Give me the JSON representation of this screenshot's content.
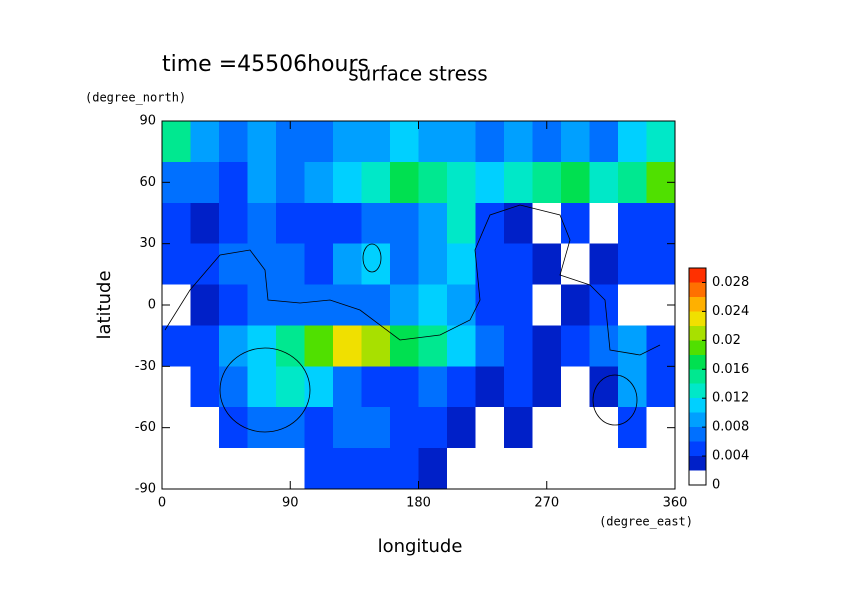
{
  "chart_data": {
    "type": "contour",
    "title": "surface stress",
    "annotation": "time =45506hours",
    "xlabel": "longitude",
    "xunit": "(degree_east)",
    "ylabel": "latitude",
    "yunit": "(degree_north)",
    "xlim": [
      0,
      360
    ],
    "xticks": [
      0,
      90,
      180,
      270,
      360
    ],
    "ylim": [
      -90,
      90
    ],
    "yticks": [
      -90,
      -60,
      -30,
      0,
      30,
      60,
      90
    ],
    "x": [
      10,
      30,
      50,
      70,
      90,
      110,
      130,
      150,
      170,
      190,
      210,
      230,
      250,
      270,
      290,
      310,
      330,
      350
    ],
    "y": [
      80,
      60,
      40,
      20,
      0,
      -20,
      -40,
      -60,
      -80
    ],
    "z": [
      [
        0.014,
        0.008,
        0.006,
        0.008,
        0.006,
        0.006,
        0.008,
        0.008,
        0.01,
        0.008,
        0.008,
        0.006,
        0.008,
        0.006,
        0.008,
        0.006,
        0.01,
        0.012
      ],
      [
        0.006,
        0.006,
        0.004,
        0.008,
        0.006,
        0.008,
        0.01,
        0.012,
        0.016,
        0.014,
        0.012,
        0.01,
        0.012,
        0.014,
        0.016,
        0.012,
        0.014,
        0.018
      ],
      [
        0.004,
        0.002,
        0.004,
        0.006,
        0.004,
        0.004,
        0.004,
        0.006,
        0.006,
        0.008,
        0.012,
        0.004,
        0.002,
        0.001,
        0.004,
        0.001,
        0.004,
        0.004
      ],
      [
        0.004,
        0.004,
        0.006,
        0.006,
        0.006,
        0.004,
        0.008,
        0.01,
        0.006,
        0.008,
        0.01,
        0.004,
        0.004,
        0.002,
        0.001,
        0.002,
        0.004,
        0.004
      ],
      [
        0.001,
        0.002,
        0.004,
        0.006,
        0.006,
        0.006,
        0.006,
        0.006,
        0.008,
        0.01,
        0.008,
        0.004,
        0.004,
        0.001,
        0.002,
        0.004,
        0.001,
        0.001
      ],
      [
        0.004,
        0.004,
        0.008,
        0.01,
        0.014,
        0.018,
        0.022,
        0.02,
        0.016,
        0.014,
        0.01,
        0.006,
        0.004,
        0.002,
        0.004,
        0.006,
        0.008,
        0.004
      ],
      [
        0.001,
        0.004,
        0.006,
        0.01,
        0.012,
        0.01,
        0.006,
        0.004,
        0.004,
        0.006,
        0.004,
        0.002,
        0.004,
        0.002,
        0.001,
        0.002,
        0.008,
        0.004
      ],
      [
        0.001,
        0.001,
        0.004,
        0.006,
        0.006,
        0.004,
        0.006,
        0.006,
        0.004,
        0.004,
        0.002,
        0.001,
        0.002,
        0.001,
        0.001,
        0.001,
        0.004,
        0.001
      ],
      [
        0.001,
        0.001,
        0.001,
        0.001,
        0.001,
        0.004,
        0.004,
        0.004,
        0.004,
        0.002,
        0.001,
        0.001,
        0.001,
        0.001,
        0.001,
        0.001,
        0.001,
        0.001
      ]
    ],
    "levels": [
      0,
      0.002,
      0.004,
      0.006,
      0.008,
      0.01,
      0.012,
      0.014,
      0.016,
      0.018,
      0.02,
      0.022,
      0.024,
      0.026,
      0.028,
      0.03
    ],
    "colors": [
      "#ffffff",
      "#0020c8",
      "#0040ff",
      "#0070ff",
      "#00a0ff",
      "#00d0ff",
      "#00e8c8",
      "#00e890",
      "#00e050",
      "#50e000",
      "#a8e000",
      "#f0e000",
      "#ffb000",
      "#ff7000",
      "#ff3000"
    ],
    "cbticks": [
      0,
      0.004,
      0.008,
      0.012,
      0.016,
      0.02,
      0.024,
      0.028
    ]
  }
}
